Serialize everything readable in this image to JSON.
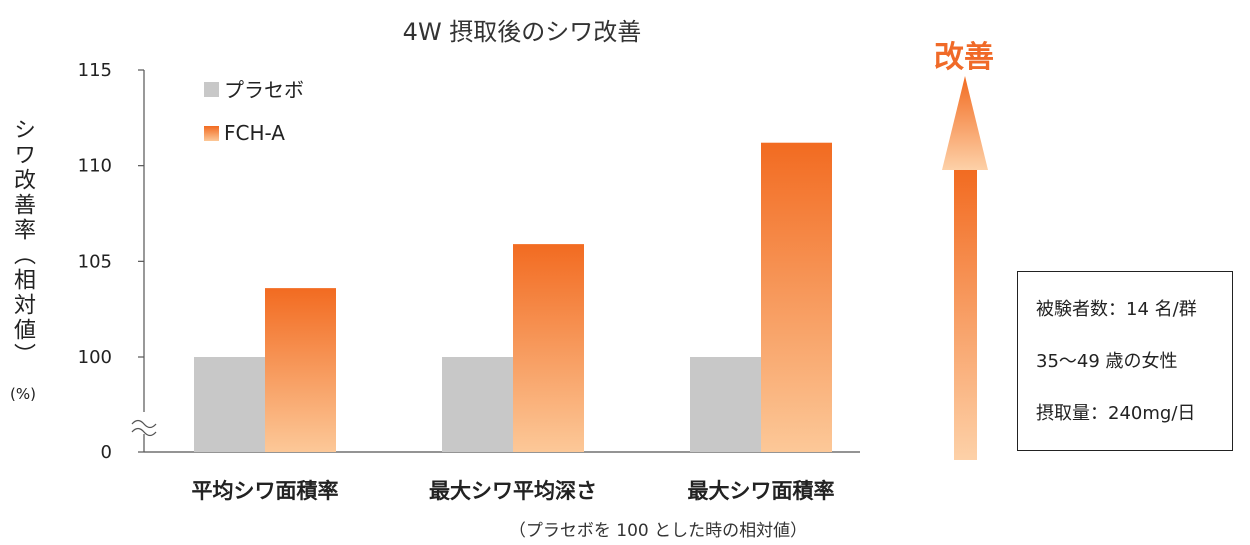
{
  "chart_data": {
    "type": "bar",
    "title": "4W 摂取後のシワ改善",
    "ylabel": "シワ改善率（相対値）",
    "ylabel_unit": "(%)",
    "categories": [
      "平均シワ面積率",
      "最大シワ平均深さ",
      "最大シワ面積率"
    ],
    "series": [
      {
        "name": "プラセボ",
        "values": [
          100,
          100,
          100
        ],
        "color": "#c8c8c8"
      },
      {
        "name": "FCH-A",
        "values": [
          103.6,
          105.9,
          111.2
        ],
        "color_top": "#f26b21",
        "color_bottom": "#fcc898"
      }
    ],
    "yticks": [
      0,
      100,
      105,
      110,
      115
    ],
    "ylim": [
      100,
      115
    ],
    "axis_break": true,
    "footnote": "（プラセボを 100 とした時の相対値）"
  },
  "annotation": {
    "improve_label": "改善"
  },
  "info_box": {
    "lines": [
      "被験者数：14 名/群",
      "35～49 歳の女性",
      "摂取量：240mg/日"
    ]
  }
}
